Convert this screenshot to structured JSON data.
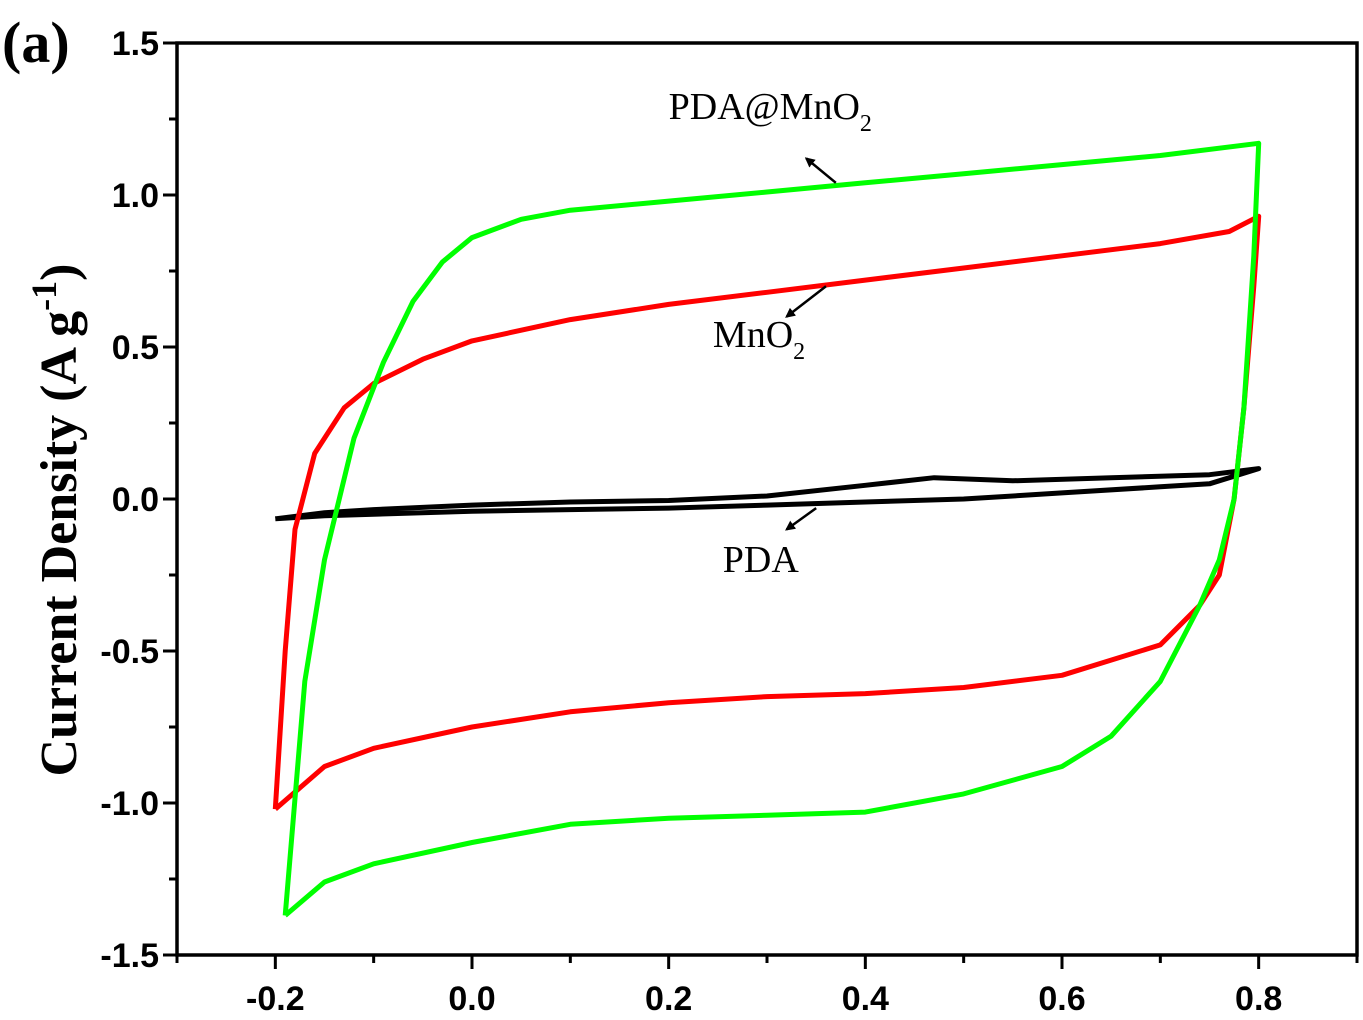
{
  "chart_data": {
    "type": "line",
    "panel_label": "(a)",
    "ylabel": "Current Density (A g",
    "ylabel_sup": "-1",
    "ylabel_close": ")",
    "xlabel": "",
    "xlim": [
      -0.3,
      0.9
    ],
    "ylim": [
      -1.5,
      1.5
    ],
    "x_ticks": [
      -0.2,
      0.0,
      0.2,
      0.4,
      0.6,
      0.8
    ],
    "x_tick_labels": [
      "-0.2",
      "0.0",
      "0.2",
      "0.4",
      "0.6",
      "0.8"
    ],
    "y_ticks": [
      -1.5,
      -1.0,
      -0.5,
      0.0,
      0.5,
      1.0,
      1.5
    ],
    "y_tick_labels": [
      "-1.5",
      "-1.0",
      "-0.5",
      "0.0",
      "0.5",
      "1.0",
      "1.5"
    ],
    "grid": false,
    "series": [
      {
        "label_main": "PDA",
        "label_sub": "",
        "color": "#000000",
        "upper": [
          [
            -0.2,
            -0.065
          ],
          [
            -0.15,
            -0.045
          ],
          [
            -0.1,
            -0.035
          ],
          [
            0.0,
            -0.02
          ],
          [
            0.1,
            -0.01
          ],
          [
            0.2,
            -0.005
          ],
          [
            0.3,
            0.01
          ],
          [
            0.4,
            0.045
          ],
          [
            0.47,
            0.07
          ],
          [
            0.55,
            0.06
          ],
          [
            0.65,
            0.07
          ],
          [
            0.75,
            0.08
          ],
          [
            0.8,
            0.1
          ]
        ],
        "lower": [
          [
            0.8,
            0.1
          ],
          [
            0.75,
            0.05
          ],
          [
            0.7,
            0.04
          ],
          [
            0.6,
            0.02
          ],
          [
            0.5,
            0.0
          ],
          [
            0.4,
            -0.01
          ],
          [
            0.3,
            -0.02
          ],
          [
            0.2,
            -0.03
          ],
          [
            0.1,
            -0.035
          ],
          [
            0.0,
            -0.04
          ],
          [
            -0.1,
            -0.05
          ],
          [
            -0.15,
            -0.055
          ],
          [
            -0.2,
            -0.065
          ]
        ]
      },
      {
        "label_main": "MnO",
        "label_sub": "2",
        "color": "#ff0000",
        "upper": [
          [
            -0.2,
            -1.02
          ],
          [
            -0.19,
            -0.5
          ],
          [
            -0.18,
            -0.1
          ],
          [
            -0.16,
            0.15
          ],
          [
            -0.13,
            0.3
          ],
          [
            -0.1,
            0.38
          ],
          [
            -0.05,
            0.46
          ],
          [
            0.0,
            0.52
          ],
          [
            0.1,
            0.59
          ],
          [
            0.2,
            0.64
          ],
          [
            0.3,
            0.68
          ],
          [
            0.4,
            0.72
          ],
          [
            0.5,
            0.76
          ],
          [
            0.6,
            0.8
          ],
          [
            0.7,
            0.84
          ],
          [
            0.77,
            0.88
          ],
          [
            0.8,
            0.93
          ]
        ],
        "lower": [
          [
            0.8,
            0.93
          ],
          [
            0.795,
            0.7
          ],
          [
            0.785,
            0.3
          ],
          [
            0.775,
            0.0
          ],
          [
            0.76,
            -0.25
          ],
          [
            0.74,
            -0.35
          ],
          [
            0.7,
            -0.48
          ],
          [
            0.6,
            -0.58
          ],
          [
            0.5,
            -0.62
          ],
          [
            0.4,
            -0.64
          ],
          [
            0.3,
            -0.65
          ],
          [
            0.2,
            -0.67
          ],
          [
            0.1,
            -0.7
          ],
          [
            0.0,
            -0.75
          ],
          [
            -0.1,
            -0.82
          ],
          [
            -0.15,
            -0.88
          ],
          [
            -0.2,
            -1.02
          ]
        ]
      },
      {
        "label_main": "PDA@MnO",
        "label_sub": "2",
        "color": "#00ff00",
        "upper": [
          [
            -0.19,
            -1.37
          ],
          [
            -0.17,
            -0.6
          ],
          [
            -0.15,
            -0.2
          ],
          [
            -0.12,
            0.2
          ],
          [
            -0.09,
            0.45
          ],
          [
            -0.06,
            0.65
          ],
          [
            -0.03,
            0.78
          ],
          [
            0.0,
            0.86
          ],
          [
            0.05,
            0.92
          ],
          [
            0.1,
            0.95
          ],
          [
            0.2,
            0.98
          ],
          [
            0.3,
            1.01
          ],
          [
            0.4,
            1.04
          ],
          [
            0.5,
            1.07
          ],
          [
            0.6,
            1.1
          ],
          [
            0.7,
            1.13
          ],
          [
            0.8,
            1.17
          ]
        ],
        "lower": [
          [
            0.8,
            1.17
          ],
          [
            0.795,
            0.8
          ],
          [
            0.785,
            0.3
          ],
          [
            0.775,
            0.0
          ],
          [
            0.76,
            -0.2
          ],
          [
            0.74,
            -0.35
          ],
          [
            0.7,
            -0.6
          ],
          [
            0.65,
            -0.78
          ],
          [
            0.6,
            -0.88
          ],
          [
            0.5,
            -0.97
          ],
          [
            0.4,
            -1.03
          ],
          [
            0.3,
            -1.04
          ],
          [
            0.2,
            -1.05
          ],
          [
            0.1,
            -1.07
          ],
          [
            0.0,
            -1.13
          ],
          [
            -0.1,
            -1.2
          ],
          [
            -0.15,
            -1.26
          ],
          [
            -0.19,
            -1.37
          ]
        ]
      }
    ],
    "annotations": [
      {
        "series": 2,
        "text_main": "PDA@MnO",
        "text_sub": "2",
        "arrow_from": [
          0.37,
          1.04
        ],
        "arrow_to": [
          0.34,
          1.12
        ],
        "text_x": 0.2,
        "text_y": 1.25
      },
      {
        "series": 1,
        "text_main": "MnO",
        "text_sub": "2",
        "arrow_from": [
          0.36,
          0.7
        ],
        "arrow_to": [
          0.32,
          0.6
        ],
        "text_x": 0.245,
        "text_y": 0.5
      },
      {
        "series": 0,
        "text_main": "PDA",
        "text_sub": "",
        "arrow_from": [
          0.35,
          -0.03
        ],
        "arrow_to": [
          0.32,
          -0.1
        ],
        "text_x": 0.255,
        "text_y": -0.24
      }
    ]
  }
}
